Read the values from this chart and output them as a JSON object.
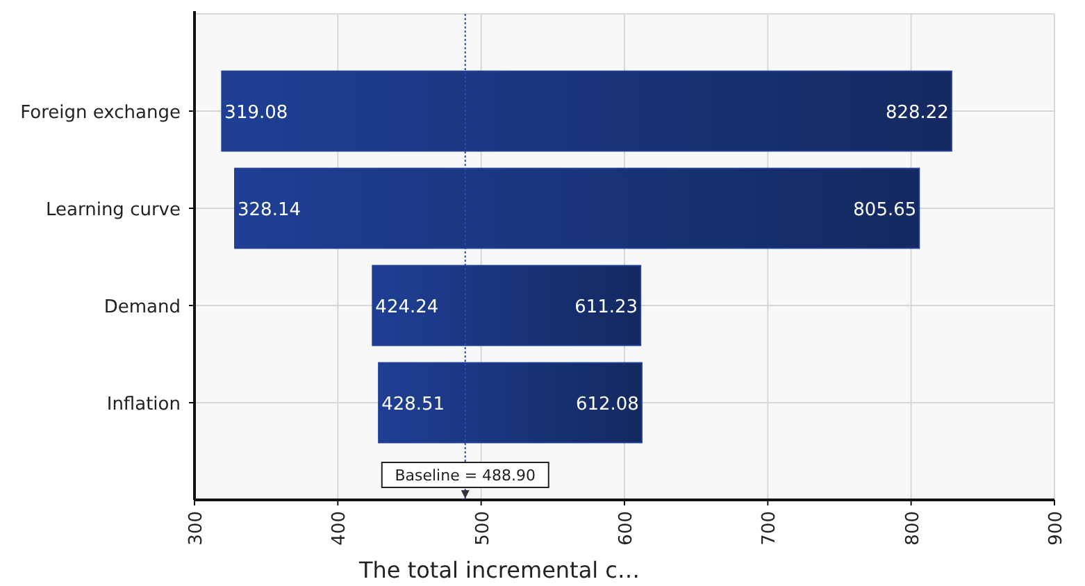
{
  "chart_data": {
    "type": "bar",
    "orientation": "horizontal",
    "xlabel": "The total incremental c…",
    "categories": [
      "Foreign exchange",
      "Learning curve",
      "Demand",
      "Inflation"
    ],
    "base": [
      319.08,
      328.14,
      424.24,
      428.51
    ],
    "values": [
      509.14,
      477.51,
      186.99,
      183.57
    ],
    "color": "#1e3f94",
    "xlim": [
      300,
      900
    ],
    "xticks": [
      300,
      400,
      500,
      600,
      700,
      800,
      900
    ],
    "grid": true,
    "ref_lines": [
      {
        "axis": "x",
        "value": 488.9,
        "label": "Baseline = 488.90",
        "color": "#2a4db0",
        "line_style": "dotted"
      }
    ],
    "annotations": [
      {
        "text": "319.08",
        "x": 319.08,
        "y": "Foreign exchange"
      },
      {
        "text": "828.22",
        "x": 828.22,
        "y": "Foreign exchange"
      },
      {
        "text": "328.14",
        "x": 328.14,
        "y": "Learning curve"
      },
      {
        "text": "805.65",
        "x": 805.65,
        "y": "Learning curve"
      },
      {
        "text": "424.24",
        "x": 424.24,
        "y": "Demand"
      },
      {
        "text": "611.23",
        "x": 611.23,
        "y": "Demand"
      },
      {
        "text": "428.51",
        "x": 428.51,
        "y": "Inflation"
      },
      {
        "text": "612.08",
        "x": 612.08,
        "y": "Inflation"
      }
    ]
  }
}
